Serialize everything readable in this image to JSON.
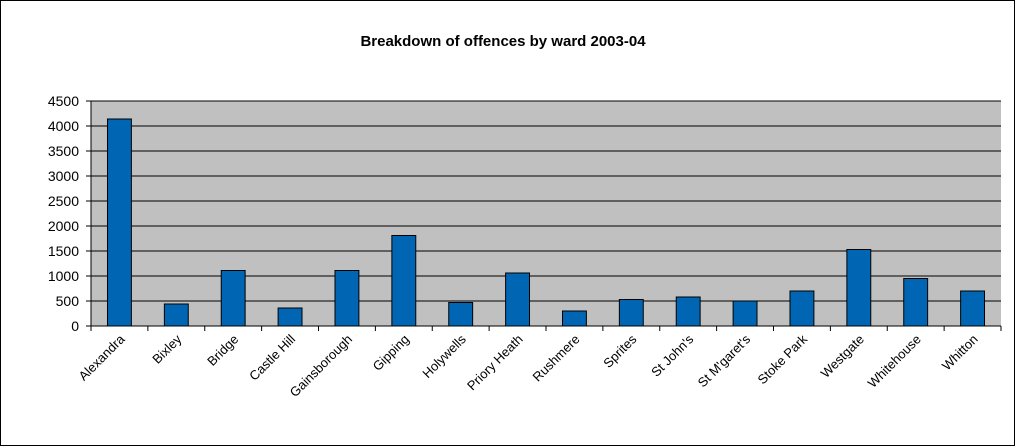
{
  "chart_data": {
    "type": "bar",
    "title": "Breakdown of offences by ward 2003-04",
    "xlabel": "",
    "ylabel": "",
    "ylim": [
      0,
      4500
    ],
    "yticks": [
      0,
      500,
      1000,
      1500,
      2000,
      2500,
      3000,
      3500,
      4000,
      4500
    ],
    "grid": true,
    "legend": "none",
    "categories": [
      "Alexandra",
      "Bixley",
      "Bridge",
      "Castle Hill",
      "Gainsborough",
      "Gipping",
      "Holywells",
      "Priory Heath",
      "Rushmere",
      "Sprites",
      "St John's",
      "St M'garet's",
      "Stoke Park",
      "Westgate",
      "Whitehouse",
      "Whitton"
    ],
    "values": [
      4140,
      440,
      1110,
      360,
      1110,
      1810,
      470,
      1060,
      300,
      530,
      580,
      500,
      700,
      1530,
      950,
      700
    ],
    "colors": {
      "bar_fill": "#0066b3",
      "bar_stroke": "#000000",
      "plot_background": "#c0c0c0",
      "gridline": "#000000"
    }
  }
}
